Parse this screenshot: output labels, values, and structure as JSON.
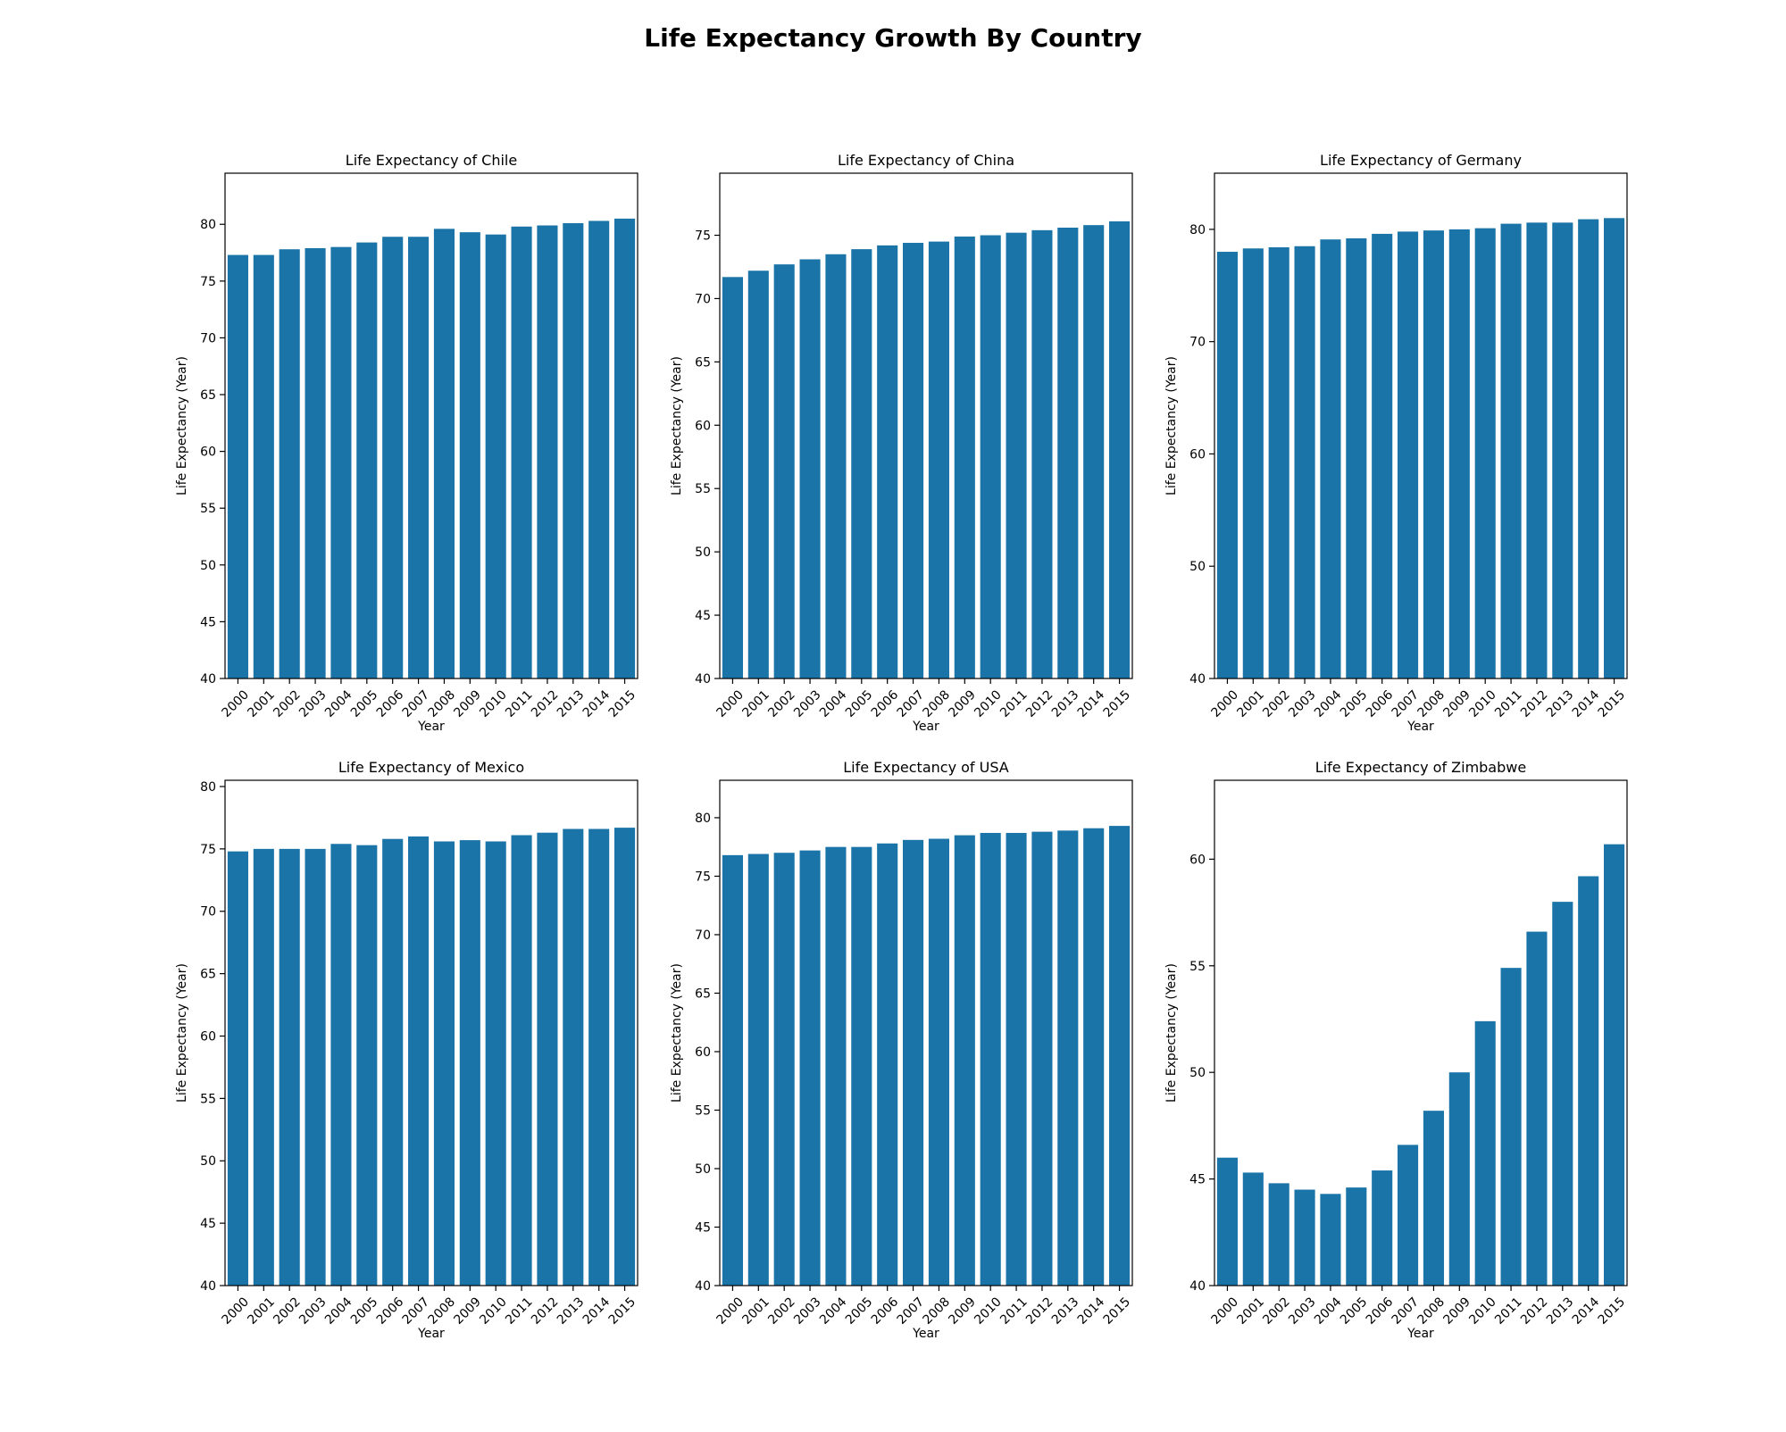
{
  "figure": {
    "title": "Life Expectancy Growth By Country",
    "bar_color": "#1a74a8"
  },
  "chart_data": [
    {
      "type": "bar",
      "title": "Life Expectancy of Chile",
      "xlabel": "Year",
      "ylabel": "Life Expectancy (Year)",
      "categories": [
        "2000",
        "2001",
        "2002",
        "2003",
        "2004",
        "2005",
        "2006",
        "2007",
        "2008",
        "2009",
        "2010",
        "2011",
        "2012",
        "2013",
        "2014",
        "2015"
      ],
      "values": [
        77.3,
        77.3,
        77.8,
        77.9,
        78.0,
        78.4,
        78.9,
        78.9,
        79.6,
        79.3,
        79.1,
        79.8,
        79.9,
        80.1,
        80.3,
        80.5
      ],
      "ylim": [
        40,
        84.5
      ],
      "yticks": [
        40,
        45,
        50,
        55,
        60,
        65,
        70,
        75,
        80
      ]
    },
    {
      "type": "bar",
      "title": "Life Expectancy of China",
      "xlabel": "Year",
      "ylabel": "Life Expectancy (Year)",
      "categories": [
        "2000",
        "2001",
        "2002",
        "2003",
        "2004",
        "2005",
        "2006",
        "2007",
        "2008",
        "2009",
        "2010",
        "2011",
        "2012",
        "2013",
        "2014",
        "2015"
      ],
      "values": [
        71.7,
        72.2,
        72.7,
        73.1,
        73.5,
        73.9,
        74.2,
        74.4,
        74.5,
        74.9,
        75.0,
        75.2,
        75.4,
        75.6,
        75.8,
        76.1
      ],
      "ylim": [
        40,
        79.9
      ],
      "yticks": [
        40,
        45,
        50,
        55,
        60,
        65,
        70,
        75
      ]
    },
    {
      "type": "bar",
      "title": "Life Expectancy of Germany",
      "xlabel": "Year",
      "ylabel": "Life Expectancy (Year)",
      "categories": [
        "2000",
        "2001",
        "2002",
        "2003",
        "2004",
        "2005",
        "2006",
        "2007",
        "2008",
        "2009",
        "2010",
        "2011",
        "2012",
        "2013",
        "2014",
        "2015"
      ],
      "values": [
        78.0,
        78.3,
        78.4,
        78.5,
        79.1,
        79.2,
        79.6,
        79.8,
        79.9,
        80.0,
        80.1,
        80.5,
        80.6,
        80.6,
        80.9,
        81.0
      ],
      "ylim": [
        40,
        85
      ],
      "yticks": [
        40,
        50,
        60,
        70,
        80
      ]
    },
    {
      "type": "bar",
      "title": "Life Expectancy of Mexico",
      "xlabel": "Year",
      "ylabel": "Life Expectancy (Year)",
      "categories": [
        "2000",
        "2001",
        "2002",
        "2003",
        "2004",
        "2005",
        "2006",
        "2007",
        "2008",
        "2009",
        "2010",
        "2011",
        "2012",
        "2013",
        "2014",
        "2015"
      ],
      "values": [
        74.8,
        75.0,
        75.0,
        75.0,
        75.4,
        75.3,
        75.8,
        76.0,
        75.6,
        75.7,
        75.6,
        76.1,
        76.3,
        76.6,
        76.6,
        76.7
      ],
      "ylim": [
        40,
        80.5
      ],
      "yticks": [
        40,
        45,
        50,
        55,
        60,
        65,
        70,
        75,
        80
      ]
    },
    {
      "type": "bar",
      "title": "Life Expectancy of USA",
      "xlabel": "Year",
      "ylabel": "Life Expectancy (Year)",
      "categories": [
        "2000",
        "2001",
        "2002",
        "2003",
        "2004",
        "2005",
        "2006",
        "2007",
        "2008",
        "2009",
        "2010",
        "2011",
        "2012",
        "2013",
        "2014",
        "2015"
      ],
      "values": [
        76.8,
        76.9,
        77.0,
        77.2,
        77.5,
        77.5,
        77.8,
        78.1,
        78.2,
        78.5,
        78.7,
        78.7,
        78.8,
        78.9,
        79.1,
        79.3
      ],
      "ylim": [
        40,
        83.2
      ],
      "yticks": [
        40,
        45,
        50,
        55,
        60,
        65,
        70,
        75,
        80
      ]
    },
    {
      "type": "bar",
      "title": "Life Expectancy of Zimbabwe",
      "xlabel": "Year",
      "ylabel": "Life Expectancy (Year)",
      "categories": [
        "2000",
        "2001",
        "2002",
        "2003",
        "2004",
        "2005",
        "2006",
        "2007",
        "2008",
        "2009",
        "2010",
        "2011",
        "2012",
        "2013",
        "2014",
        "2015"
      ],
      "values": [
        46.0,
        45.3,
        44.8,
        44.5,
        44.3,
        44.6,
        45.4,
        46.6,
        48.2,
        50.0,
        52.4,
        54.9,
        56.6,
        58.0,
        59.2,
        60.7
      ],
      "ylim": [
        40,
        63.7
      ],
      "yticks": [
        40,
        45,
        50,
        55,
        60
      ]
    }
  ]
}
